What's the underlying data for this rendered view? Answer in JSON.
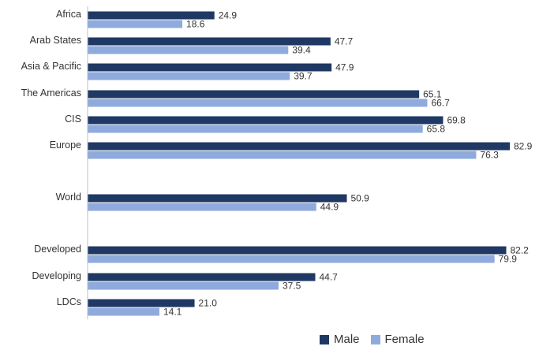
{
  "chart_data": {
    "type": "bar",
    "orientation": "horizontal",
    "categories": [
      "Africa",
      "Arab States",
      "Asia & Pacific",
      "The Americas",
      "CIS",
      "Europe",
      "World",
      "Developed",
      "Developing",
      "LDCs"
    ],
    "series": [
      {
        "name": "Male",
        "color": "#1f3864",
        "values": [
          24.9,
          47.7,
          47.9,
          65.1,
          69.8,
          82.9,
          50.9,
          82.2,
          44.7,
          21.0
        ]
      },
      {
        "name": "Female",
        "color": "#8faadc",
        "values": [
          18.6,
          39.4,
          39.7,
          66.7,
          65.8,
          76.3,
          44.9,
          79.9,
          37.5,
          14.1
        ]
      }
    ],
    "value_labels": {
      "Male": [
        "24.9",
        "47.7",
        "47.9",
        "65.1",
        "69.8",
        "82.9",
        "50.9",
        "82.2",
        "44.7",
        "21.0"
      ],
      "Female": [
        "18.6",
        "39.4",
        "39.7",
        "66.7",
        "65.8",
        "76.3",
        "44.9",
        "79.9",
        "37.5",
        "14.1"
      ]
    },
    "title": "",
    "xlabel": "",
    "ylabel": "",
    "xlim": [
      0,
      85
    ],
    "grid": false,
    "legend_position": "bottom-right"
  }
}
